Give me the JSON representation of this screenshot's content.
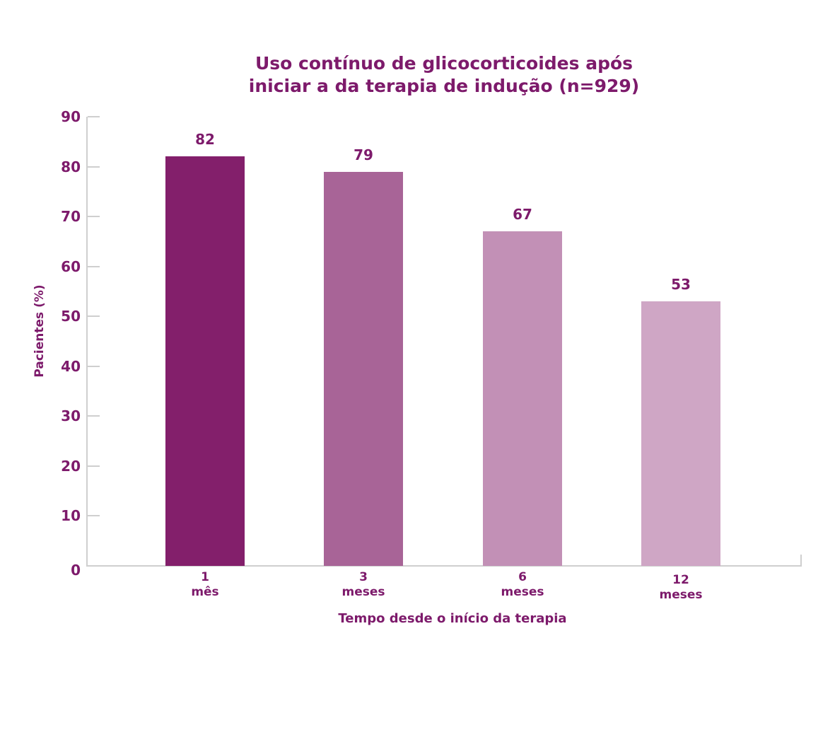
{
  "chart_data": {
    "type": "bar",
    "title": "Uso contínuo de glicocorticoides após iniciar a da terapia de indução (n=929)",
    "title_lines": [
      "Uso contínuo de glicocorticoides após",
      "iniciar a da terapia de indução (n=929)"
    ],
    "categories": [
      "1 mês",
      "3 meses",
      "6 meses",
      "12 meses"
    ],
    "category_lines": [
      [
        "1",
        "mês"
      ],
      [
        "3",
        "meses"
      ],
      [
        "6",
        "meses"
      ],
      [
        "12",
        "meses"
      ]
    ],
    "values": [
      82,
      79,
      67,
      53
    ],
    "value_labels": [
      "82",
      "79",
      "67",
      "53"
    ],
    "colors": [
      "#831f6b",
      "#a86497",
      "#c290b6",
      "#cfa6c5"
    ],
    "xlabel": "Tempo desde o início da terapia",
    "ylabel": "Pacientes (%)",
    "ylim": [
      0,
      90
    ],
    "yticks": [
      "0",
      "10",
      "20",
      "30",
      "40",
      "50",
      "60",
      "70",
      "80",
      "90"
    ],
    "grid": false,
    "legend": null
  }
}
